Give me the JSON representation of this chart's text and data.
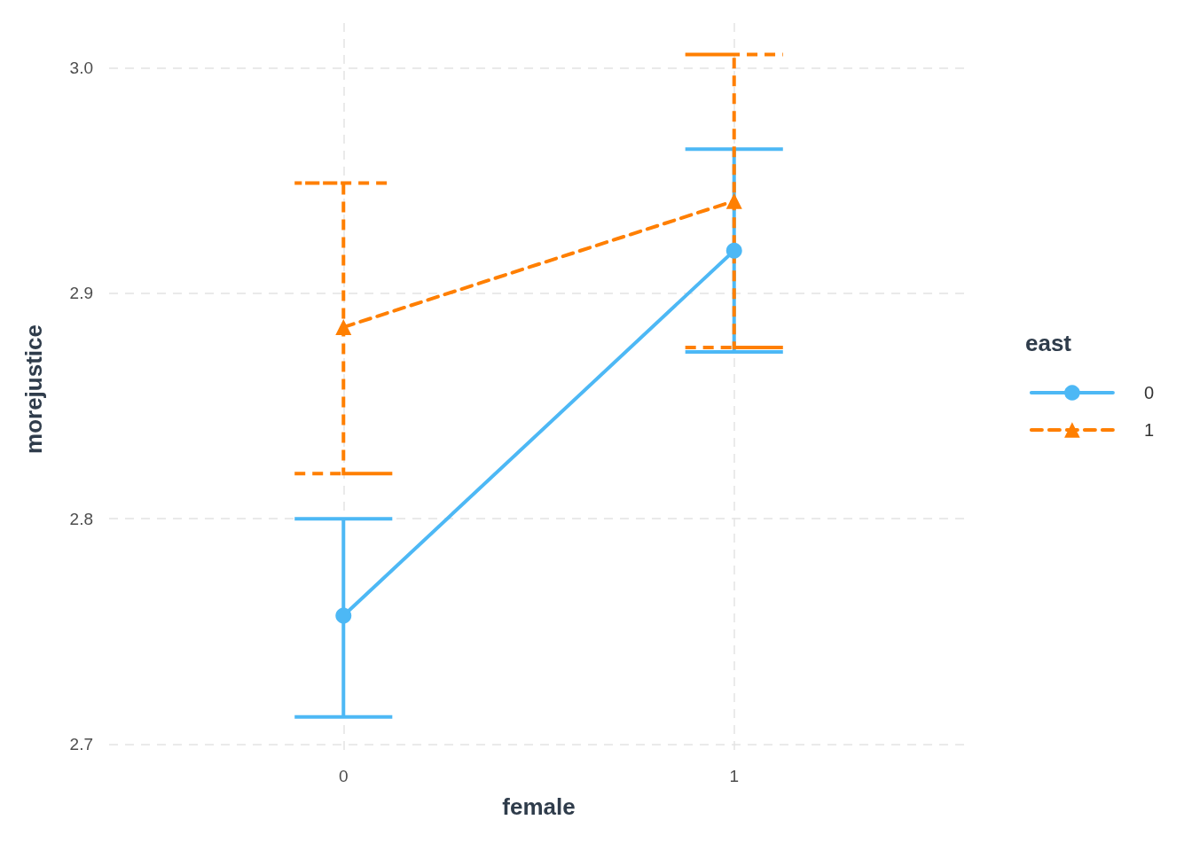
{
  "chart_data": {
    "type": "line",
    "xlabel": "female",
    "ylabel": "morejustice",
    "legend_title": "east",
    "x": [
      0,
      1
    ],
    "xlim": [
      -0.6,
      1.6
    ],
    "xticks": [
      0,
      1
    ],
    "ylim": [
      2.695,
      3.02
    ],
    "yticks": [
      {
        "value": 2.7,
        "label": "2.7"
      },
      {
        "value": 2.8,
        "label": "2.8"
      },
      {
        "value": 2.9,
        "label": "2.9"
      },
      {
        "value": 3.0,
        "label": "3.0"
      }
    ],
    "grid": true,
    "legend": "right",
    "series": [
      {
        "name": "0",
        "color": "#4db8f5",
        "values": [
          2.757,
          2.919
        ],
        "errors": [
          [
            2.712,
            2.8
          ],
          [
            2.874,
            2.964
          ]
        ],
        "marker": "circle",
        "line_style": "solid"
      },
      {
        "name": "1",
        "color": "#ff7f00",
        "values": [
          2.885,
          2.941
        ],
        "errors": [
          [
            2.82,
            2.949
          ],
          [
            2.876,
            3.006
          ]
        ],
        "marker": "triangle",
        "line_style": "dashed"
      }
    ]
  }
}
